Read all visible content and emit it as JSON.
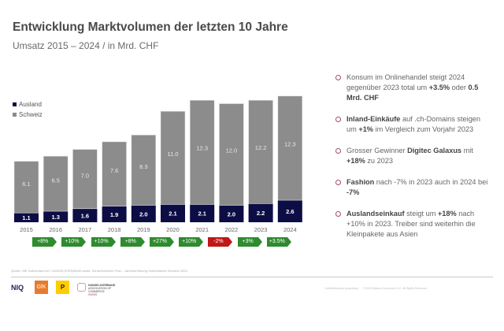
{
  "header": {
    "title": "Entwicklung Marktvolumen der letzten 10 Jahre",
    "subtitle": "Umsatz 2015 – 2024 / in Mrd. CHF"
  },
  "chart_data": {
    "type": "bar",
    "stacked": true,
    "title": "Entwicklung Marktvolumen der letzten 10 Jahre",
    "subtitle": "Umsatz 2015 – 2024 / in Mrd. CHF",
    "xlabel": "",
    "ylabel": "Mrd. CHF",
    "ylim": [
      0,
      15
    ],
    "grid": false,
    "legend_position": "top-left",
    "categories": [
      "2015",
      "2016",
      "2017",
      "2018",
      "2019",
      "2020",
      "2021",
      "2022",
      "2023",
      "2024"
    ],
    "series": [
      {
        "name": "Ausland",
        "color": "#0d0d45",
        "values": [
          1.1,
          1.3,
          1.6,
          1.9,
          2.0,
          2.1,
          2.1,
          2.0,
          2.2,
          2.6
        ]
      },
      {
        "name": "Schweiz",
        "color": "#8c8c8c",
        "values": [
          6.1,
          6.5,
          7.0,
          7.6,
          8.3,
          11.0,
          12.3,
          12.0,
          12.2,
          12.3
        ]
      }
    ],
    "growth_labels": [
      {
        "label": "+8%",
        "trend": "up"
      },
      {
        "label": "+10%",
        "trend": "up"
      },
      {
        "label": "+10%",
        "trend": "up"
      },
      {
        "label": "+8%",
        "trend": "up"
      },
      {
        "label": "+27%",
        "trend": "up"
      },
      {
        "label": "+10%",
        "trend": "up"
      },
      {
        "label": "-2%",
        "trend": "down"
      },
      {
        "label": "+3%",
        "trend": "up"
      },
      {
        "label": "+3.5%",
        "trend": "up"
      }
    ]
  },
  "legend": {
    "items": [
      {
        "label": "Ausland",
        "color": "#0d0d45"
      },
      {
        "label": "Schweiz",
        "color": "#8c8c8c"
      }
    ]
  },
  "colors": {
    "up": "#2e8b2e",
    "down": "#c01818",
    "bullet": "#a05060"
  },
  "notes": [
    {
      "parts": [
        {
          "t": "Konsum im Onlinehandel steigt 2024 gegenüber 2023 total um ",
          "b": false
        },
        {
          "t": "+3.5%",
          "b": true
        },
        {
          "t": " oder ",
          "b": false
        },
        {
          "t": "0.5 Mrd. CHF",
          "b": true
        }
      ]
    },
    {
      "parts": [
        {
          "t": "Inland-Einkäufe",
          "b": true
        },
        {
          "t": " auf .ch-Domains steigen um ",
          "b": false
        },
        {
          "t": "+1%",
          "b": true
        },
        {
          "t": " im Vergleich zum Vorjahr 2023",
          "b": false
        }
      ]
    },
    {
      "parts": [
        {
          "t": "Grosser Gewinner ",
          "b": false
        },
        {
          "t": "Digitec Galaxus",
          "b": true
        },
        {
          "t": " mit ",
          "b": false
        },
        {
          "t": "+18%",
          "b": true
        },
        {
          "t": " zu 2023",
          "b": false
        }
      ]
    },
    {
      "parts": [
        {
          "t": "Fashion",
          "b": true
        },
        {
          "t": " nach -7% in 2023 auch in 2024 bei ",
          "b": false
        },
        {
          "t": "-7%",
          "b": true
        }
      ]
    },
    {
      "parts": [
        {
          "t": "Auslandseinkauf",
          "b": true
        },
        {
          "t": " steigt um ",
          "b": false
        },
        {
          "t": "+18%",
          "b": true
        },
        {
          "t": " nach +10% in 2023. Treiber sind weiterhin die Kleinpakete aus Asien",
          "b": false
        }
      ]
    }
  ],
  "footer": {
    "source": "Quelle: GfK Switzerland AG, HANDELSVERBAND.swiss, Schweizerische Post – Jahreserhebung Onlinehandel Schweiz 2024",
    "confidential": "Confidential and proprietary",
    "copyright": "© 2025 Nielsen Consumer LLC. All Rights Reserved.",
    "logos": {
      "niq": "NIQ",
      "gfk": "GfK",
      "post": "P",
      "hv_line1": "HANDELSVERBAND",
      "hv_line2": "ASSOCIATION OF COMMERCE",
      "hv_line3": "SWISS"
    }
  }
}
